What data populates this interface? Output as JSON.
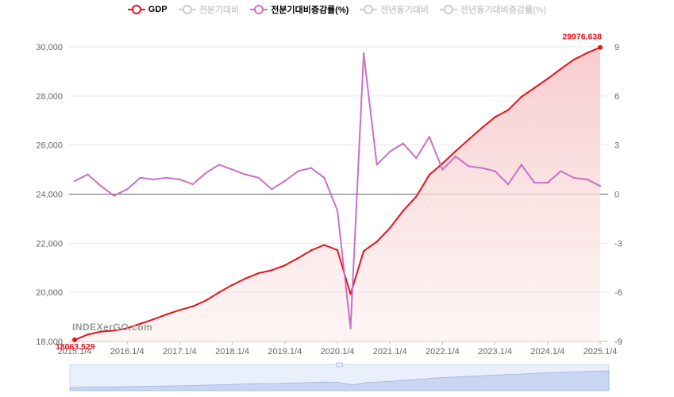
{
  "legend": [
    {
      "name": "GDP",
      "color": "#e3141c",
      "active": true
    },
    {
      "name": "전분기대비",
      "color": "#cccccc",
      "active": false
    },
    {
      "name": "전분기대비증감률(%)",
      "color": "#c970c4",
      "active": true
    },
    {
      "name": "전년동기대비",
      "color": "#cccccc",
      "active": false
    },
    {
      "name": "전년동기대비증감률(%)",
      "color": "#cccccc",
      "active": false
    }
  ],
  "watermark": "INDEXerGO.com",
  "chart_data": {
    "type": "line",
    "x": [
      "2015.1/4",
      "2015.2/4",
      "2015.3/4",
      "2015.4/4",
      "2016.1/4",
      "2016.2/4",
      "2016.3/4",
      "2016.4/4",
      "2017.1/4",
      "2017.2/4",
      "2017.3/4",
      "2017.4/4",
      "2018.1/4",
      "2018.2/4",
      "2018.3/4",
      "2018.4/4",
      "2019.1/4",
      "2019.2/4",
      "2019.3/4",
      "2019.4/4",
      "2020.1/4",
      "2020.2/4",
      "2020.3/4",
      "2020.4/4",
      "2021.1/4",
      "2021.2/4",
      "2021.3/4",
      "2021.4/4",
      "2022.1/4",
      "2022.2/4",
      "2022.3/4",
      "2022.4/4",
      "2023.1/4",
      "2023.2/4",
      "2023.3/4",
      "2023.4/4",
      "2024.1/4",
      "2024.2/4",
      "2024.3/4",
      "2024.4/4",
      "2025.1/4"
    ],
    "x_tick_labels": [
      "2015.1/4",
      "2016.1/4",
      "2017.1/4",
      "2018.1/4",
      "2019.1/4",
      "2020.1/4",
      "2021.1/4",
      "2022.1/4",
      "2023.1/4",
      "2024.1/4",
      "2025.1/4"
    ],
    "series": [
      {
        "name": "GDP",
        "axis": "left",
        "color": "#e3141c",
        "area": true,
        "values": [
          18063.529,
          18280,
          18400,
          18440,
          18540,
          18720,
          18900,
          19100,
          19280,
          19430,
          19670,
          20000,
          20300,
          20560,
          20780,
          20900,
          21100,
          21390,
          21710,
          21930,
          21720,
          19930,
          21680,
          22060,
          22620,
          23320,
          23900,
          24790,
          25250,
          25750,
          26230,
          26700,
          27140,
          27430,
          27960,
          28330,
          28700,
          29100,
          29480,
          29750,
          29976.638
        ]
      },
      {
        "name": "전분기대비증감률(%)",
        "axis": "right",
        "color": "#c970c4",
        "area": false,
        "values": [
          0.8,
          1.2,
          0.5,
          -0.1,
          0.3,
          1.0,
          0.9,
          1.0,
          0.9,
          0.6,
          1.3,
          1.8,
          1.5,
          1.2,
          1.0,
          0.3,
          0.8,
          1.4,
          1.6,
          1.0,
          -1.0,
          -8.2,
          8.6,
          1.8,
          2.6,
          3.1,
          2.2,
          3.5,
          1.5,
          2.3,
          1.7,
          1.6,
          1.4,
          0.6,
          1.8,
          0.7,
          0.7,
          1.4,
          1.0,
          0.9,
          0.5
        ]
      }
    ],
    "annotations": [
      {
        "text": "18063.529",
        "series": "GDP",
        "index": 0
      },
      {
        "text": "29976.638",
        "series": "GDP",
        "index": 40
      }
    ],
    "y_left": {
      "min": 18000,
      "max": 30000,
      "ticks": [
        "18,000",
        "20,000",
        "22,000",
        "24,000",
        "26,000",
        "28,000",
        "30,000"
      ]
    },
    "y_right": {
      "min": -9,
      "max": 9,
      "ticks": [
        "-9",
        "-6",
        "-3",
        "0",
        "3",
        "6",
        "9"
      ]
    },
    "grid": true,
    "legend_position": "top-center",
    "zoom_slider": true
  }
}
